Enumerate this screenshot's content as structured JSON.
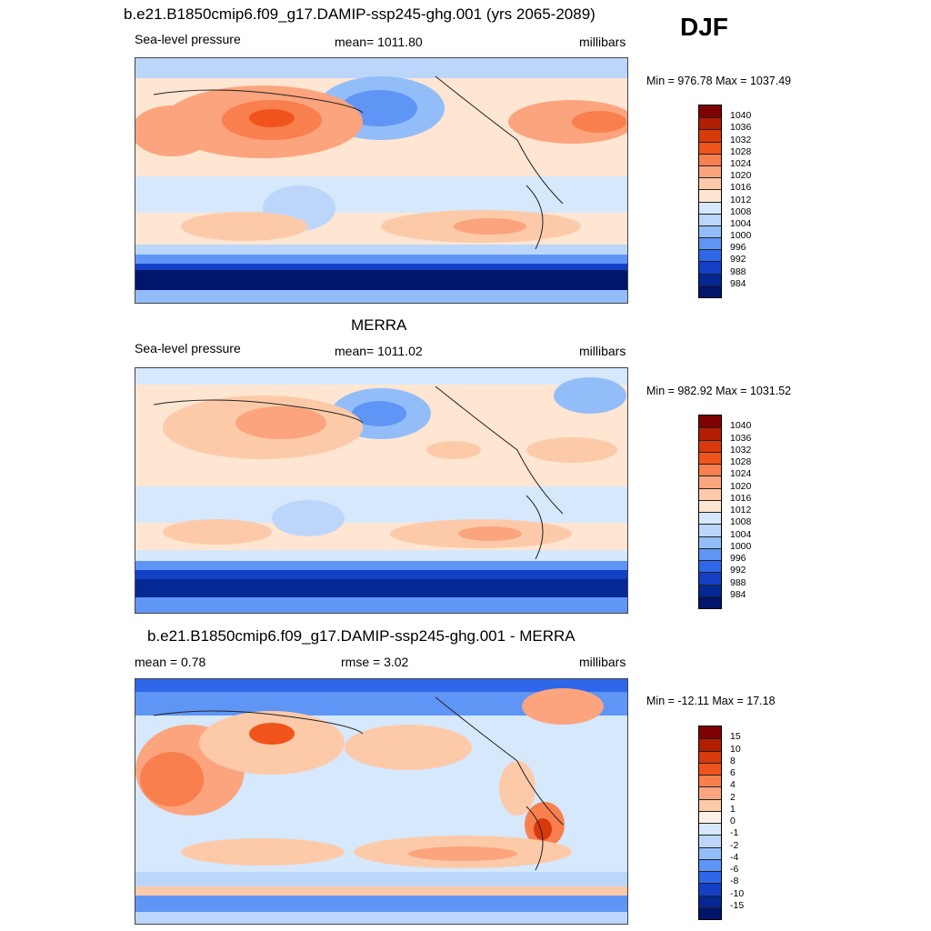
{
  "season": "DJF",
  "panels": [
    {
      "title": "b.e21.B1850cmip6.f09_g17.DAMIP-ssp245-ghg.001 (yrs 2065-2089)",
      "left_label": "Sea-level pressure",
      "center_label": "mean= 1011.80",
      "right_label": "millibars",
      "minmax": "Min = 976.78 Max = 1037.49",
      "colorbar": {
        "labels": [
          "1040",
          "1036",
          "1032",
          "1028",
          "1024",
          "1020",
          "1016",
          "1012",
          "1008",
          "1004",
          "1000",
          "996",
          "992",
          "988",
          "984"
        ],
        "colors": [
          "#7f0000",
          "#b31d00",
          "#d93a0c",
          "#f0541c",
          "#f97f4f",
          "#fba47e",
          "#fdcaa9",
          "#fee6d2",
          "#d6e8fb",
          "#bcd6fb",
          "#93bdf9",
          "#5f95f5",
          "#2f67ea",
          "#1440c8",
          "#062894",
          "#00156b"
        ]
      }
    },
    {
      "title": "MERRA",
      "left_label": "Sea-level pressure",
      "center_label": "mean= 1011.02",
      "right_label": "millibars",
      "minmax": "Min = 982.92 Max = 1031.52",
      "colorbar": {
        "labels": [
          "1040",
          "1036",
          "1032",
          "1028",
          "1024",
          "1020",
          "1016",
          "1012",
          "1008",
          "1004",
          "1000",
          "996",
          "992",
          "988",
          "984"
        ],
        "colors": [
          "#7f0000",
          "#b31d00",
          "#d93a0c",
          "#f0541c",
          "#f97f4f",
          "#fba47e",
          "#fdcaa9",
          "#fee6d2",
          "#d6e8fb",
          "#bcd6fb",
          "#93bdf9",
          "#5f95f5",
          "#2f67ea",
          "#1440c8",
          "#062894",
          "#00156b"
        ]
      }
    },
    {
      "title": "b.e21.B1850cmip6.f09_g17.DAMIP-ssp245-ghg.001 - MERRA",
      "left_label": "mean =   0.78",
      "center_label": "rmse =   3.02",
      "right_label": "millibars",
      "minmax": "Min = -12.11 Max =  17.18",
      "colorbar": {
        "labels": [
          "15",
          "10",
          "8",
          "6",
          "4",
          "2",
          "1",
          "0",
          "-1",
          "-2",
          "-4",
          "-6",
          "-8",
          "-10",
          "-15"
        ],
        "colors": [
          "#7f0000",
          "#b31d00",
          "#d93a0c",
          "#f0541c",
          "#f97f4f",
          "#fba47e",
          "#fdcaa9",
          "#fef0e6",
          "#d6e8fb",
          "#bcd6fb",
          "#93bdf9",
          "#5f95f5",
          "#2f67ea",
          "#1440c8",
          "#062894",
          "#00156b"
        ]
      }
    }
  ],
  "chart_data": [
    {
      "type": "heatmap",
      "title": "b.e21.B1850cmip6.f09_g17.DAMIP-ssp245-ghg.001 (yrs 2065-2089)",
      "variable": "Sea-level pressure",
      "units": "millibars",
      "mean": 1011.8,
      "min": 976.78,
      "max": 1037.49,
      "contour_levels": [
        984,
        988,
        992,
        996,
        1000,
        1004,
        1008,
        1012,
        1016,
        1020,
        1024,
        1028,
        1032,
        1036,
        1040
      ]
    },
    {
      "type": "heatmap",
      "title": "MERRA",
      "variable": "Sea-level pressure",
      "units": "millibars",
      "mean": 1011.02,
      "min": 982.92,
      "max": 1031.52,
      "contour_levels": [
        984,
        988,
        992,
        996,
        1000,
        1004,
        1008,
        1012,
        1016,
        1020,
        1024,
        1028,
        1032,
        1036,
        1040
      ]
    },
    {
      "type": "heatmap",
      "title": "b.e21.B1850cmip6.f09_g17.DAMIP-ssp245-ghg.001 - MERRA",
      "units": "millibars",
      "mean": 0.78,
      "rmse": 3.02,
      "min": -12.11,
      "max": 17.18,
      "contour_levels": [
        -15,
        -10,
        -8,
        -6,
        -4,
        -2,
        -1,
        0,
        1,
        2,
        4,
        6,
        8,
        10,
        15
      ]
    }
  ]
}
